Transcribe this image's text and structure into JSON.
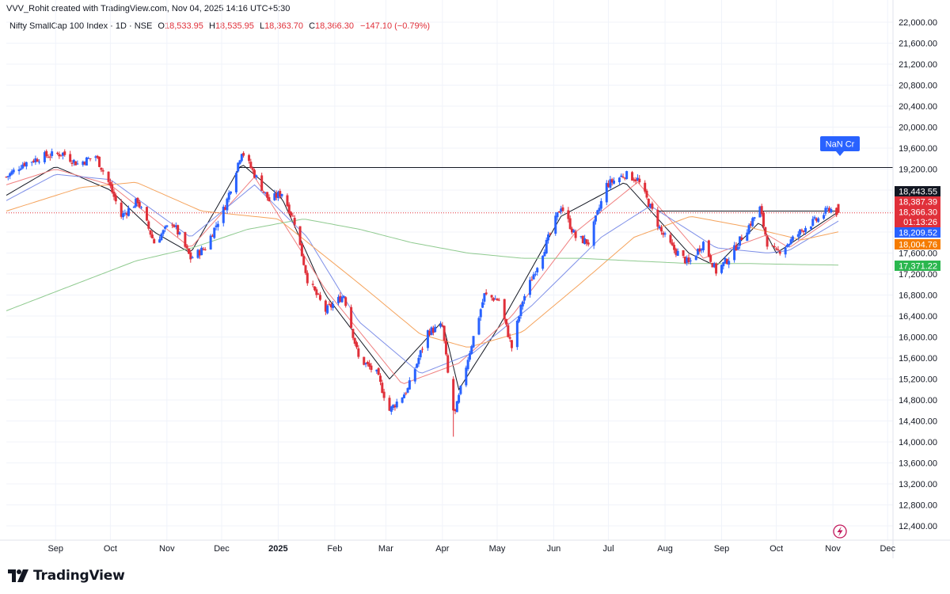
{
  "header": {
    "attribution": "VVV_Rohit created with TradingView.com, Nov 04, 2025 14:16 UTC+5:30",
    "symbol": "Nifty SmallCap 100 Index · 1D · NSE",
    "ohlc": {
      "o_label": "O",
      "o": "18,533.95",
      "h_label": "H",
      "h": "18,535.95",
      "l_label": "L",
      "l": "18,363.70",
      "c_label": "C",
      "c": "18,366.30"
    },
    "change": "−147.10 (−0.79%)"
  },
  "annotation": {
    "label": "NaN Cr",
    "color": "#2962ff"
  },
  "footer": {
    "brand": "TradingView",
    "logo_icon": "tradingview-logo-icon"
  },
  "colors": {
    "up": "#2962ff",
    "down": "#e0303a",
    "ma_black": "#131722",
    "ma_red": "#f08080",
    "ma_blue": "#7e8fe8",
    "ma_orange": "#f5a35c",
    "ma_green": "#8fca8f",
    "grid": "#f0f3fa"
  },
  "chart_data": {
    "type": "candlestick",
    "y_axis": {
      "range": [
        12200,
        22200
      ],
      "ticks": [
        "22,000.00",
        "21,600.00",
        "21,200.00",
        "20,800.00",
        "20,400.00",
        "20,000.00",
        "19,600.00",
        "19,200.00",
        "18,800.00",
        "18,400.00",
        "18,000.00",
        "17,600.00",
        "17,200.00",
        "16,800.00",
        "16,400.00",
        "16,000.00",
        "15,600.00",
        "15,200.00",
        "14,800.00",
        "14,400.00",
        "14,000.00",
        "13,600.00",
        "13,200.00",
        "12,800.00",
        "12,400.00"
      ],
      "tick_values": [
        22000,
        21600,
        21200,
        20800,
        20400,
        20000,
        19600,
        19200,
        18800,
        18400,
        18000,
        17600,
        17200,
        16800,
        16400,
        16000,
        15600,
        15200,
        14800,
        14400,
        14000,
        13600,
        13200,
        12800,
        12400
      ]
    },
    "x_axis": {
      "labels": [
        "Sep",
        "Oct",
        "Nov",
        "Dec",
        "2025",
        "Feb",
        "Mar",
        "Apr",
        "May",
        "Jun",
        "Jul",
        "Aug",
        "Sep",
        "Oct",
        "Nov",
        "Dec"
      ],
      "bold": [
        false,
        false,
        false,
        false,
        true,
        false,
        false,
        false,
        false,
        false,
        false,
        false,
        false,
        false,
        false,
        false
      ],
      "dates": [
        "2024-09-01",
        "2024-10-01",
        "2024-11-01",
        "2024-12-01",
        "2025-01-01",
        "2025-02-01",
        "2025-03-01",
        "2025-04-01",
        "2025-05-01",
        "2025-06-01",
        "2025-07-01",
        "2025-08-01",
        "2025-09-01",
        "2025-10-01",
        "2025-11-01",
        "2025-12-01"
      ],
      "first_date": "2024-08-05",
      "last_date": "2025-11-04",
      "range_end_date": "2025-12-20"
    },
    "price_series": {
      "anchors": [
        [
          "2024-08-05",
          19050
        ],
        [
          "2024-08-14",
          19300
        ],
        [
          "2024-08-26",
          19450
        ],
        [
          "2024-09-05",
          19500
        ],
        [
          "2024-09-13",
          19300
        ],
        [
          "2024-09-23",
          19450
        ],
        [
          "2024-09-30",
          18950
        ],
        [
          "2024-10-07",
          18300
        ],
        [
          "2024-10-16",
          18600
        ],
        [
          "2024-10-25",
          17800
        ],
        [
          "2024-11-04",
          18200
        ],
        [
          "2024-11-14",
          17500
        ],
        [
          "2024-11-22",
          17700
        ],
        [
          "2024-12-03",
          18500
        ],
        [
          "2024-12-12",
          19550
        ],
        [
          "2024-12-19",
          19100
        ],
        [
          "2024-12-27",
          18600
        ],
        [
          "2025-01-03",
          18750
        ],
        [
          "2025-01-10",
          18200
        ],
        [
          "2025-01-17",
          17100
        ],
        [
          "2025-01-27",
          16500
        ],
        [
          "2025-02-06",
          16800
        ],
        [
          "2025-02-14",
          15600
        ],
        [
          "2025-02-24",
          15300
        ],
        [
          "2025-03-03",
          14600
        ],
        [
          "2025-03-13",
          15000
        ],
        [
          "2025-03-24",
          16100
        ],
        [
          "2025-04-01",
          16200
        ],
        [
          "2025-04-07",
          14400
        ],
        [
          "2025-04-15",
          15600
        ],
        [
          "2025-04-24",
          16800
        ],
        [
          "2025-05-02",
          16700
        ],
        [
          "2025-05-09",
          15800
        ],
        [
          "2025-05-15",
          16700
        ],
        [
          "2025-05-27",
          17700
        ],
        [
          "2025-06-05",
          18500
        ],
        [
          "2025-06-13",
          17900
        ],
        [
          "2025-06-20",
          17800
        ],
        [
          "2025-06-30",
          18900
        ],
        [
          "2025-07-10",
          19100
        ],
        [
          "2025-07-17",
          19000
        ],
        [
          "2025-07-25",
          18400
        ],
        [
          "2025-07-30",
          18000
        ],
        [
          "2025-08-05",
          17700
        ],
        [
          "2025-08-14",
          17400
        ],
        [
          "2025-08-22",
          17800
        ],
        [
          "2025-08-29",
          17250
        ],
        [
          "2025-09-05",
          17500
        ],
        [
          "2025-09-12",
          17900
        ],
        [
          "2025-09-22",
          18450
        ],
        [
          "2025-09-26",
          17800
        ],
        [
          "2025-10-01",
          17600
        ],
        [
          "2025-10-08",
          17800
        ],
        [
          "2025-10-17",
          18100
        ],
        [
          "2025-10-24",
          18250
        ],
        [
          "2025-10-30",
          18450
        ],
        [
          "2025-11-04",
          18366.3
        ]
      ]
    },
    "moving_averages": [
      {
        "color": "#131722",
        "anchors": [
          [
            "2024-08-05",
            18700
          ],
          [
            "2024-09-01",
            19250
          ],
          [
            "2024-10-01",
            18800
          ],
          [
            "2024-10-25",
            18000
          ],
          [
            "2024-11-14",
            17600
          ],
          [
            "2024-12-12",
            19300
          ],
          [
            "2025-01-03",
            18650
          ],
          [
            "2025-01-27",
            16800
          ],
          [
            "2025-03-03",
            15200
          ],
          [
            "2025-04-01",
            16300
          ],
          [
            "2025-04-10",
            15000
          ],
          [
            "2025-05-02",
            16200
          ],
          [
            "2025-06-05",
            18300
          ],
          [
            "2025-07-10",
            18950
          ],
          [
            "2025-08-14",
            17600
          ],
          [
            "2025-08-29",
            17350
          ],
          [
            "2025-09-22",
            18200
          ],
          [
            "2025-10-01",
            17600
          ],
          [
            "2025-11-04",
            18387
          ]
        ]
      },
      {
        "color": "#f08080",
        "anchors": [
          [
            "2024-08-05",
            18900
          ],
          [
            "2024-09-01",
            19200
          ],
          [
            "2024-10-01",
            18900
          ],
          [
            "2024-11-14",
            17700
          ],
          [
            "2024-12-19",
            19050
          ],
          [
            "2025-01-27",
            16900
          ],
          [
            "2025-03-10",
            15100
          ],
          [
            "2025-04-10",
            15500
          ],
          [
            "2025-05-09",
            16400
          ],
          [
            "2025-06-13",
            18000
          ],
          [
            "2025-07-17",
            18950
          ],
          [
            "2025-08-22",
            17500
          ],
          [
            "2025-09-26",
            17950
          ],
          [
            "2025-10-08",
            17700
          ],
          [
            "2025-11-04",
            18350
          ]
        ]
      },
      {
        "color": "#7e8fe8",
        "anchors": [
          [
            "2024-08-05",
            18600
          ],
          [
            "2024-09-01",
            19100
          ],
          [
            "2024-10-01",
            19000
          ],
          [
            "2024-11-14",
            17900
          ],
          [
            "2024-12-19",
            18900
          ],
          [
            "2025-01-17",
            17900
          ],
          [
            "2025-02-14",
            16300
          ],
          [
            "2025-03-20",
            15300
          ],
          [
            "2025-04-18",
            15700
          ],
          [
            "2025-05-20",
            16600
          ],
          [
            "2025-06-27",
            17900
          ],
          [
            "2025-07-24",
            18500
          ],
          [
            "2025-08-29",
            17700
          ],
          [
            "2025-09-26",
            17600
          ],
          [
            "2025-10-08",
            17650
          ],
          [
            "2025-11-04",
            18209.52
          ]
        ]
      },
      {
        "color": "#f5a35c",
        "anchors": [
          [
            "2024-08-05",
            18400
          ],
          [
            "2024-09-15",
            18850
          ],
          [
            "2024-10-15",
            18950
          ],
          [
            "2024-11-20",
            18400
          ],
          [
            "2025-01-01",
            18250
          ],
          [
            "2025-02-15",
            17000
          ],
          [
            "2025-03-20",
            16050
          ],
          [
            "2025-04-15",
            15800
          ],
          [
            "2025-05-15",
            16100
          ],
          [
            "2025-06-15",
            17000
          ],
          [
            "2025-07-15",
            17900
          ],
          [
            "2025-08-15",
            18300
          ],
          [
            "2025-09-15",
            18100
          ],
          [
            "2025-10-15",
            17850
          ],
          [
            "2025-11-04",
            18004.76
          ]
        ]
      },
      {
        "color": "#8fca8f",
        "anchors": [
          [
            "2024-08-05",
            16500
          ],
          [
            "2024-09-15",
            17050
          ],
          [
            "2024-10-15",
            17450
          ],
          [
            "2024-11-15",
            17700
          ],
          [
            "2024-12-15",
            18050
          ],
          [
            "2025-01-15",
            18250
          ],
          [
            "2025-02-15",
            18050
          ],
          [
            "2025-03-15",
            17800
          ],
          [
            "2025-04-15",
            17600
          ],
          [
            "2025-05-15",
            17500
          ],
          [
            "2025-06-15",
            17500
          ],
          [
            "2025-07-15",
            17450
          ],
          [
            "2025-08-15",
            17400
          ],
          [
            "2025-09-15",
            17400
          ],
          [
            "2025-10-15",
            17380
          ],
          [
            "2025-11-04",
            17371.22
          ]
        ]
      }
    ],
    "horizontal_lines": [
      {
        "y": 19230,
        "from": "2024-12-10",
        "to": "2025-12-08",
        "color": "#131722"
      },
      {
        "y": 18400,
        "from": "2025-07-28",
        "to": "2025-11-04",
        "color": "#131722"
      },
      {
        "y": 18366.3,
        "from": "2024-08-05",
        "to": "2025-12-08",
        "color": "#e0303a",
        "dotted": true
      }
    ],
    "price_labels": [
      {
        "text": "18,443.55",
        "value": 18443.55,
        "bg": "#131722",
        "fg": "#ffffff"
      },
      {
        "text": "18,387.39",
        "value": 18387.39,
        "bg": "#e0303a",
        "fg": "#ffffff"
      },
      {
        "text": "18,366.30",
        "value": 18366.3,
        "bg": "#e0303a",
        "fg": "#ffffff",
        "sub": "01:13:26"
      },
      {
        "text": "18,209.52",
        "value": 18209.52,
        "bg": "#2962ff",
        "fg": "#ffffff"
      },
      {
        "text": "18,004.76",
        "value": 18004.76,
        "bg": "#f57c00",
        "fg": "#ffffff"
      },
      {
        "text": "17,371.22",
        "value": 17371.22,
        "bg": "#2bb74f",
        "fg": "#ffffff"
      }
    ]
  }
}
